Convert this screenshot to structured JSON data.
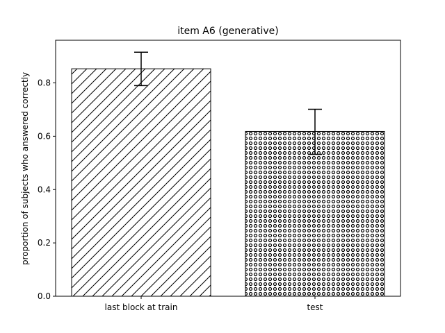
{
  "chart_data": {
    "type": "bar",
    "title": "item A6 (generative)",
    "xlabel": "",
    "ylabel": "proportion of subjects who answered correctly",
    "categories": [
      "last block at train",
      "test"
    ],
    "values": [
      0.853,
      0.618
    ],
    "error_low": [
      0.79,
      0.532
    ],
    "error_high": [
      0.915,
      0.701
    ],
    "hatch": [
      "diagonal",
      "small-circles"
    ],
    "ylim": [
      0,
      0.96
    ],
    "yticks": [
      "0.0",
      "0.2",
      "0.4",
      "0.6",
      "0.8"
    ],
    "grid": false,
    "legend": "none"
  }
}
